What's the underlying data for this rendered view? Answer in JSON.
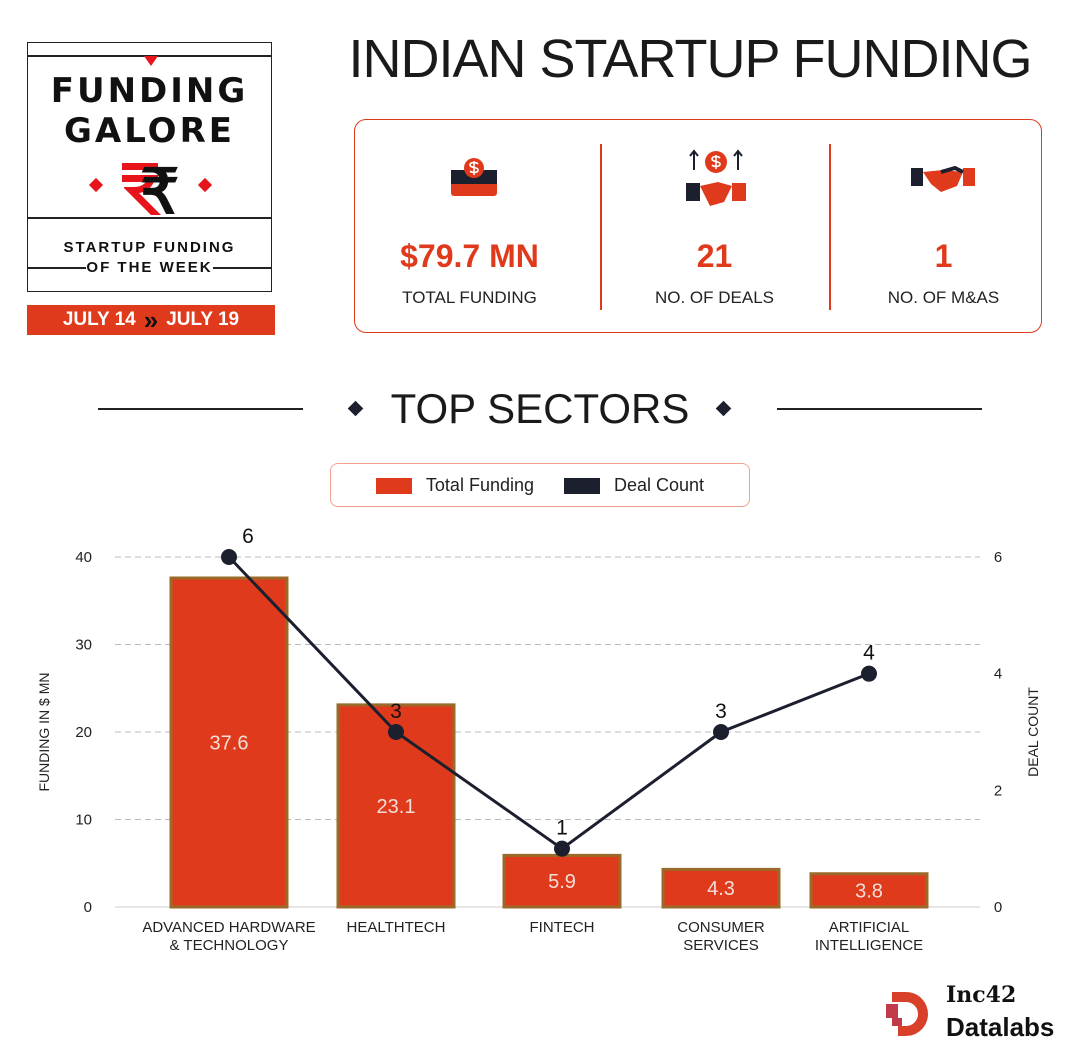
{
  "badge": {
    "line1": "FUNDING",
    "line2": "GALORE",
    "subtitle1": "STARTUP FUNDING",
    "subtitle2": "OF THE WEEK",
    "date_from": "JULY 14",
    "date_to": "JULY 19",
    "arrow": "»"
  },
  "title": "INDIAN STARTUP FUNDING",
  "stats": [
    {
      "value": "$79.7 MN",
      "label": "TOTAL FUNDING",
      "icon": "money-box-icon"
    },
    {
      "value": "21",
      "label": "NO. OF DEALS",
      "icon": "handshake-dollar-icon"
    },
    {
      "value": "1",
      "label": "NO. OF M&AS",
      "icon": "handshake-icon"
    }
  ],
  "section_title": "TOP SECTORS",
  "legend": {
    "funding": "Total Funding",
    "deals": "Deal Count"
  },
  "colors": {
    "accent": "#e03a1c",
    "dark": "#1b1f2e"
  },
  "brand": {
    "line1": "Inc42",
    "line2": "Datalabs"
  },
  "chart_data": {
    "type": "bar+line",
    "categories": [
      [
        "ADVANCED HARDWARE",
        "& TECHNOLOGY"
      ],
      [
        "HEALTHTECH"
      ],
      [
        "FINTECH"
      ],
      [
        "CONSUMER",
        "SERVICES"
      ],
      [
        "ARTIFICIAL",
        "INTELLIGENCE"
      ]
    ],
    "series": [
      {
        "name": "Total Funding",
        "type": "bar",
        "axis": "left",
        "values": [
          37.6,
          23.1,
          5.9,
          4.3,
          3.8
        ]
      },
      {
        "name": "Deal Count",
        "type": "line",
        "axis": "right",
        "values": [
          6,
          3,
          1,
          3,
          4
        ]
      }
    ],
    "ylabel": "FUNDING IN $ MN",
    "y2label": "DEAL COUNT",
    "ylim": [
      0,
      40
    ],
    "yticks": [
      "0",
      "10",
      "20",
      "30",
      "40"
    ],
    "y2lim": [
      0,
      6
    ],
    "y2ticks": [
      "0",
      "2",
      "4",
      "6"
    ],
    "grid": true
  }
}
